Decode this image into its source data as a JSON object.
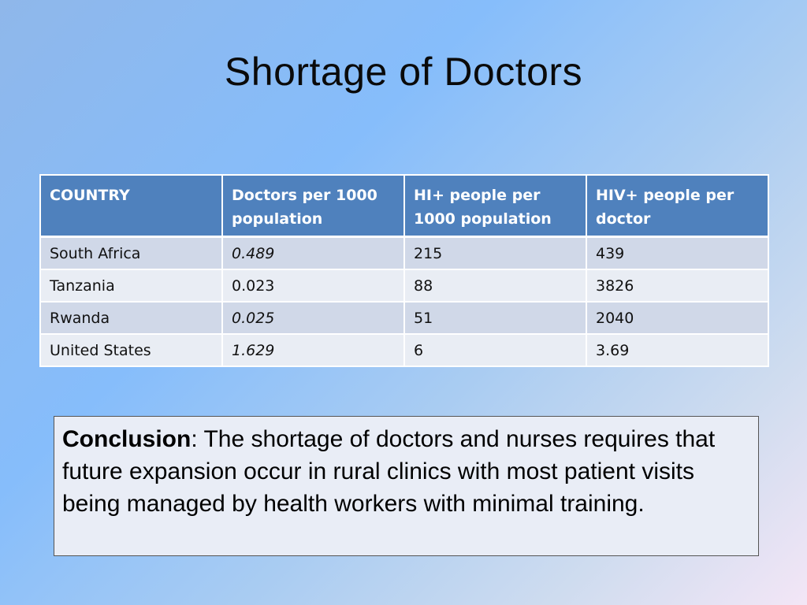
{
  "slide": {
    "title": "Shortage of Doctors"
  },
  "table": {
    "headers": [
      "COUNTRY",
      "Doctors per 1000 population",
      "HI+ people per 1000 population",
      "HIV+ people per doctor"
    ],
    "rows": [
      [
        "South Africa",
        "0.489",
        "215",
        "439"
      ],
      [
        "Tanzania",
        "0.023",
        "88",
        "3826"
      ],
      [
        "Rwanda",
        "0.025",
        "51",
        "2040"
      ],
      [
        "United States",
        "1.629",
        "6",
        "3.69"
      ]
    ],
    "colors": {
      "header_bg": "#4f81bd",
      "row_band_dark": "#d0d8e8",
      "row_band_light": "#e9edf4"
    }
  },
  "conclusion": {
    "label": "Conclusion",
    "separator": ": ",
    "text": "The shortage of doctors and nurses requires that future expansion occur in rural clinics with most patient visits being managed by health workers with minimal training."
  }
}
